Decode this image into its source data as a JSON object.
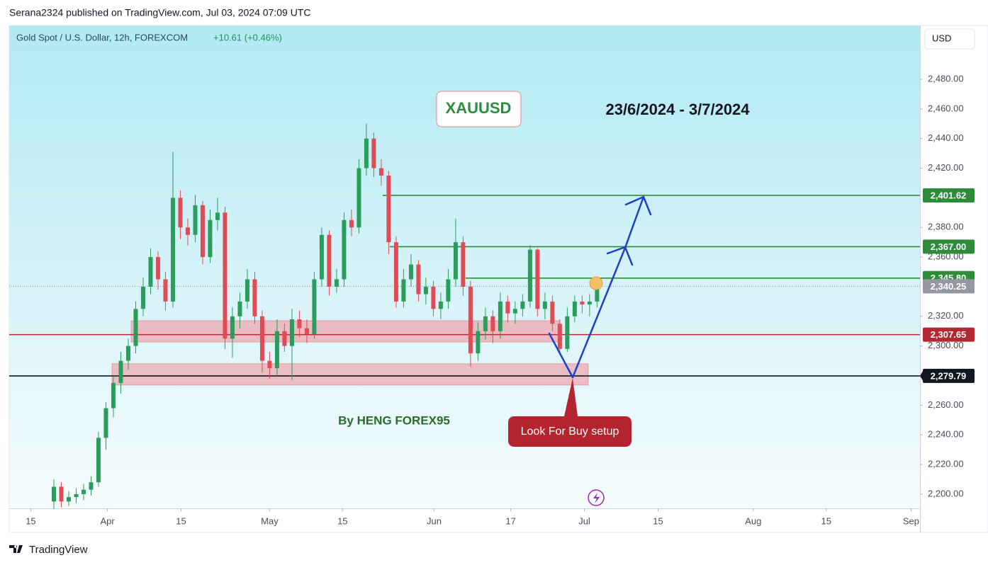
{
  "chart_data": {
    "type": "candlestick",
    "published": "Serana2324 published on TradingView.com, Jul 03, 2024 07:09 UTC",
    "symbol": "Gold Spot / U.S. Dollar, 12h, FOREXCOM",
    "change": "+10.61 (+0.46%)",
    "currency": "USD",
    "brand": "TradingView",
    "title": "XAUUSD",
    "subtitle": "23/6/2024 - 3/7/2024",
    "author": "By HENG FOREX95",
    "callout": "Look For Buy setup",
    "up_color": "#2a9d5c",
    "down_color": "#e04b55",
    "ylim": [
      2190.4,
      2516.3
    ],
    "yticks": [
      {
        "value": 2200,
        "label": "2,200.00"
      },
      {
        "value": 2220,
        "label": "2,220.00"
      },
      {
        "value": 2240,
        "label": "2,240.00"
      },
      {
        "value": 2260,
        "label": "2,260.00"
      },
      {
        "value": 2300,
        "label": "2,300.00"
      },
      {
        "value": 2320,
        "label": "2,320.00"
      },
      {
        "value": 2360,
        "label": "2,360.00"
      },
      {
        "value": 2380,
        "label": "2,380.00"
      },
      {
        "value": 2420,
        "label": "2,420.00"
      },
      {
        "value": 2440,
        "label": "2,440.00"
      },
      {
        "value": 2460,
        "label": "2,460.00"
      },
      {
        "value": 2480,
        "label": "2,480.00"
      }
    ],
    "xlim": [
      0,
      122.4
    ],
    "xticks": [
      {
        "value": 2.9,
        "label": "15"
      },
      {
        "value": 13.2,
        "label": "Apr"
      },
      {
        "value": 23.1,
        "label": "15"
      },
      {
        "value": 35,
        "label": "May"
      },
      {
        "value": 44.8,
        "label": "15"
      },
      {
        "value": 57.1,
        "label": "Jun"
      },
      {
        "value": 67.4,
        "label": "17"
      },
      {
        "value": 77.3,
        "label": "Jul"
      },
      {
        "value": 87.2,
        "label": "15"
      },
      {
        "value": 100,
        "label": "Aug"
      },
      {
        "value": 109.8,
        "label": "15"
      },
      {
        "value": 121.2,
        "label": "Sep"
      }
    ],
    "x": [
      6,
      7,
      8,
      9,
      10,
      11,
      12,
      13,
      14,
      15,
      16,
      17,
      18,
      19,
      20,
      21,
      22,
      23,
      24,
      25,
      26,
      27,
      28,
      29,
      30,
      31,
      32,
      33,
      34,
      35,
      36,
      37,
      38,
      39,
      40,
      41,
      42,
      43,
      44,
      45,
      46,
      47,
      48,
      49,
      50,
      51,
      52,
      53,
      54,
      55,
      56,
      57,
      58,
      59,
      60,
      61,
      62,
      63,
      64,
      65,
      66,
      67,
      68,
      69,
      70,
      71,
      72,
      73,
      74,
      75,
      76,
      77,
      78,
      79
    ],
    "open": [
      2195,
      2205,
      2195,
      2198,
      2200,
      2203,
      2208,
      2238,
      2258,
      2275,
      2290,
      2300,
      2325,
      2340,
      2360,
      2345,
      2330,
      2400,
      2380,
      2375,
      2395,
      2360,
      2385,
      2390,
      2305,
      2320,
      2330,
      2345,
      2320,
      2290,
      2285,
      2310,
      2300,
      2318,
      2312,
      2308,
      2345,
      2375,
      2340,
      2345,
      2385,
      2380,
      2420,
      2440,
      2420,
      2415,
      2370,
      2330,
      2345,
      2355,
      2335,
      2340,
      2325,
      2330,
      2345,
      2370,
      2340,
      2295,
      2310,
      2320,
      2310,
      2330,
      2322,
      2325,
      2330,
      2365,
      2325,
      2330,
      2315,
      2298,
      2320,
      2330,
      2328,
      2330
    ],
    "high": [
      2210,
      2208,
      2202,
      2204,
      2207,
      2212,
      2242,
      2262,
      2280,
      2296,
      2305,
      2330,
      2346,
      2366,
      2364,
      2350,
      2431,
      2405,
      2386,
      2402,
      2398,
      2392,
      2400,
      2394,
      2326,
      2336,
      2352,
      2350,
      2324,
      2296,
      2318,
      2315,
      2325,
      2324,
      2318,
      2350,
      2380,
      2378,
      2352,
      2390,
      2392,
      2426,
      2450,
      2444,
      2426,
      2418,
      2374,
      2352,
      2362,
      2358,
      2346,
      2344,
      2336,
      2352,
      2386,
      2374,
      2344,
      2316,
      2326,
      2324,
      2336,
      2334,
      2330,
      2335,
      2368,
      2366,
      2336,
      2334,
      2318,
      2326,
      2334,
      2334,
      2335,
      2345
    ],
    "low": [
      2190,
      2191,
      2192,
      2194,
      2196,
      2199,
      2205,
      2230,
      2252,
      2268,
      2284,
      2295,
      2320,
      2335,
      2338,
      2324,
      2326,
      2372,
      2368,
      2370,
      2355,
      2356,
      2378,
      2298,
      2292,
      2312,
      2325,
      2315,
      2282,
      2278,
      2280,
      2296,
      2277,
      2306,
      2302,
      2305,
      2340,
      2334,
      2336,
      2340,
      2374,
      2376,
      2415,
      2414,
      2408,
      2362,
      2326,
      2326,
      2340,
      2330,
      2328,
      2320,
      2318,
      2325,
      2340,
      2334,
      2286,
      2290,
      2304,
      2302,
      2305,
      2316,
      2315,
      2320,
      2326,
      2320,
      2318,
      2310,
      2294,
      2296,
      2316,
      2322,
      2320,
      2326
    ],
    "close": [
      2205,
      2195,
      2198,
      2200,
      2203,
      2208,
      2238,
      2258,
      2275,
      2290,
      2300,
      2325,
      2340,
      2360,
      2345,
      2330,
      2400,
      2380,
      2375,
      2395,
      2360,
      2385,
      2390,
      2305,
      2320,
      2330,
      2345,
      2320,
      2290,
      2285,
      2310,
      2300,
      2318,
      2312,
      2308,
      2345,
      2375,
      2340,
      2345,
      2385,
      2380,
      2420,
      2440,
      2420,
      2415,
      2370,
      2330,
      2345,
      2355,
      2335,
      2340,
      2325,
      2330,
      2345,
      2370,
      2340,
      2295,
      2310,
      2320,
      2310,
      2330,
      2322,
      2325,
      2330,
      2365,
      2325,
      2330,
      2315,
      2298,
      2320,
      2330,
      2328,
      2330,
      2340.25
    ],
    "levels": [
      {
        "value": 2401.62,
        "label": "2,401.62",
        "color": "#2e8b3a"
      },
      {
        "value": 2367,
        "label": "2,367.00",
        "color": "#2e8b3a"
      },
      {
        "value": 2345.8,
        "label": "2,345.80",
        "color": "#2e8b3a"
      },
      {
        "value": 2340.25,
        "label": "2,340.25",
        "color": "#9598a1"
      },
      {
        "value": 2307.65,
        "label": "2,307.65",
        "color": "#b22833"
      },
      {
        "value": 2279.79,
        "label": "2,279.79",
        "color": "#131722"
      }
    ],
    "zones": [
      {
        "from": 2302.7,
        "to": 2317
      },
      {
        "from": 2273.6,
        "to": 2288
      }
    ]
  }
}
